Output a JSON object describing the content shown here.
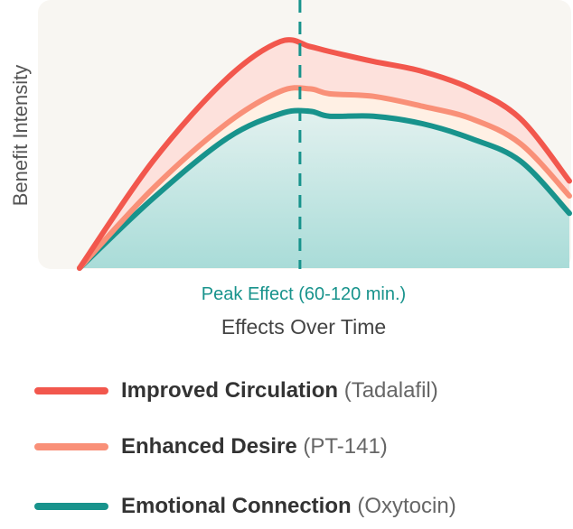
{
  "colors": {
    "circulation": "#f2574d",
    "desire": "#f99078",
    "connection": "#18938c",
    "panel": "#f8f6f2",
    "peak_text": "#18938c",
    "axis_text": "#555555"
  },
  "chart_data": {
    "type": "area",
    "ylabel": "Benefit Intensity",
    "xlabel": "Effects Over Time",
    "peak_label": "Peak Effect (60-120 min.)",
    "grid": false,
    "legend_position": "bottom",
    "series": [
      {
        "name": "Improved Circulation",
        "source": "(Tadalafil)",
        "color_key": "circulation",
        "values": [
          [
            0,
            0
          ],
          [
            0.15,
            0.43
          ],
          [
            0.3,
            0.76
          ],
          [
            0.41,
            0.91
          ],
          [
            0.47,
            0.89
          ],
          [
            0.51,
            0.87
          ],
          [
            0.6,
            0.83
          ],
          [
            0.7,
            0.79
          ],
          [
            0.8,
            0.72
          ],
          [
            0.9,
            0.6
          ],
          [
            1.0,
            0.35
          ]
        ]
      },
      {
        "name": "Enhanced Desire",
        "source": "(PT-141)",
        "color_key": "desire",
        "values": [
          [
            0,
            0
          ],
          [
            0.15,
            0.32
          ],
          [
            0.3,
            0.58
          ],
          [
            0.41,
            0.71
          ],
          [
            0.47,
            0.72
          ],
          [
            0.51,
            0.7
          ],
          [
            0.6,
            0.69
          ],
          [
            0.7,
            0.65
          ],
          [
            0.8,
            0.6
          ],
          [
            0.9,
            0.5
          ],
          [
            1.0,
            0.29
          ]
        ]
      },
      {
        "name": "Emotional Connection",
        "source": "(Oxytocin)",
        "color_key": "connection",
        "values": [
          [
            0,
            0
          ],
          [
            0.15,
            0.28
          ],
          [
            0.3,
            0.52
          ],
          [
            0.41,
            0.62
          ],
          [
            0.47,
            0.63
          ],
          [
            0.51,
            0.61
          ],
          [
            0.6,
            0.61
          ],
          [
            0.7,
            0.58
          ],
          [
            0.8,
            0.52
          ],
          [
            0.9,
            0.43
          ],
          [
            1.0,
            0.22
          ]
        ]
      }
    ],
    "peak_x": 0.45
  }
}
